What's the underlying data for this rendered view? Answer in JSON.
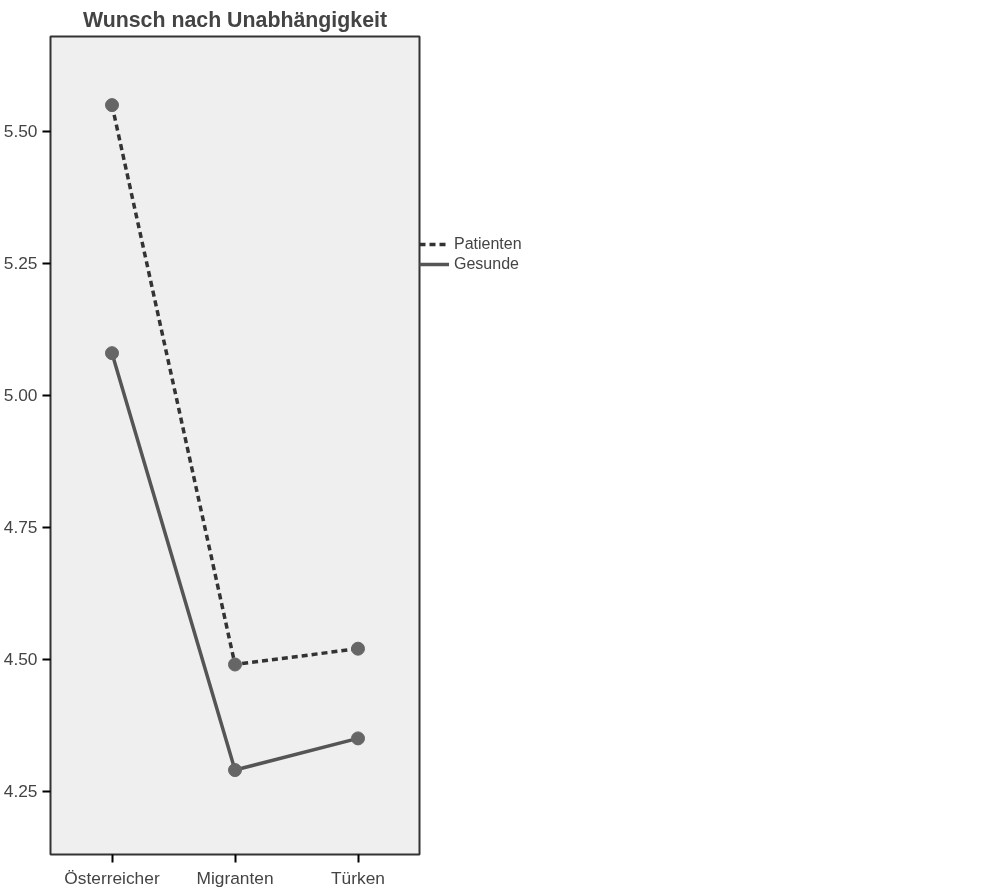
{
  "chart_data": {
    "type": "line",
    "title": "Wunsch nach Unabhängigkeit",
    "categories": [
      "Österreicher",
      "Migranten",
      "Türken"
    ],
    "series": [
      {
        "name": "Patienten",
        "color": "#333333",
        "values": [
          5.55,
          4.49,
          4.52
        ],
        "line_style": "dashed"
      },
      {
        "name": "Gesunde",
        "color": "#555555",
        "values": [
          5.08,
          4.29,
          4.35
        ],
        "line_style": "solid"
      }
    ],
    "ylim": [
      4.13,
      5.68
    ],
    "yticks": [
      {
        "value": 4.25,
        "label": "4.25"
      },
      {
        "value": 4.5,
        "label": "4.50"
      },
      {
        "value": 4.75,
        "label": "4.75"
      },
      {
        "value": 5.0,
        "label": "5.00"
      },
      {
        "value": 5.25,
        "label": "5.25"
      },
      {
        "value": 5.5,
        "label": "5.50"
      }
    ],
    "marker": "circle",
    "grid": false,
    "legend": "top right"
  }
}
